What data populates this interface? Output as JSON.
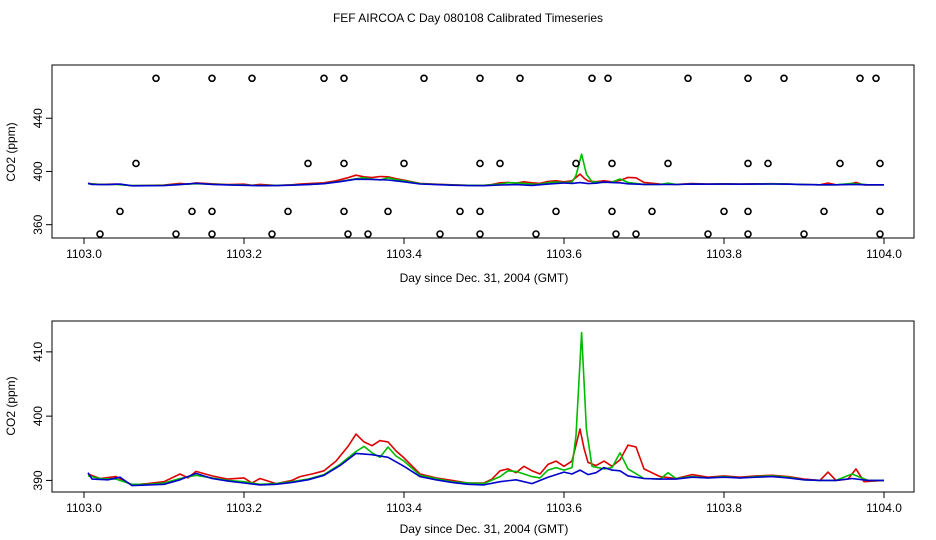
{
  "title": "FEF AIRCOA C  Day 080108  Calibrated Timeseries",
  "colors": {
    "red": "#dd0000",
    "green": "#00bb00",
    "blue": "#0000cc",
    "marker": "#000000"
  },
  "chart_data": [
    {
      "type": "line",
      "panel": "top",
      "xlabel": "Day since Dec. 31, 2004 (GMT)",
      "ylabel": "CO2 (ppm)",
      "xlim": [
        1103.0,
        1104.0
      ],
      "ylim": [
        350,
        480
      ],
      "xticks": [
        1103.0,
        1103.2,
        1103.4,
        1103.6,
        1103.8,
        1104.0
      ],
      "xtick_labels": [
        "1103.0",
        "1103.2",
        "1103.4",
        "1103.6",
        "1103.8",
        "1104.0"
      ],
      "yticks": [
        360,
        400,
        440
      ],
      "ytick_labels": [
        "360",
        "400",
        "440"
      ],
      "series_ref": "shared",
      "markers": {
        "description": "calibration / flag points",
        "levels": [
          {
            "y": 470,
            "x": [
              1103.09,
              1103.16,
              1103.21,
              1103.3,
              1103.325,
              1103.425,
              1103.495,
              1103.545,
              1103.635,
              1103.655,
              1103.755,
              1103.83,
              1103.875,
              1103.97,
              1103.99
            ]
          },
          {
            "y": 406,
            "x": [
              1103.065,
              1103.28,
              1103.325,
              1103.4,
              1103.495,
              1103.52,
              1103.615,
              1103.66,
              1103.73,
              1103.83,
              1103.855,
              1103.945,
              1103.995
            ]
          },
          {
            "y": 370,
            "x": [
              1103.045,
              1103.135,
              1103.16,
              1103.255,
              1103.325,
              1103.38,
              1103.47,
              1103.495,
              1103.59,
              1103.66,
              1103.71,
              1103.8,
              1103.83,
              1103.925,
              1103.995
            ]
          },
          {
            "y": 353,
            "x": [
              1103.02,
              1103.115,
              1103.16,
              1103.235,
              1103.33,
              1103.355,
              1103.445,
              1103.495,
              1103.565,
              1103.665,
              1103.69,
              1103.78,
              1103.83,
              1103.9,
              1103.995
            ]
          }
        ]
      }
    },
    {
      "type": "line",
      "panel": "bottom",
      "xlabel": "Day since Dec. 31, 2004 (GMT)",
      "ylabel": "CO2 (ppm)",
      "xlim": [
        1103.0,
        1104.0
      ],
      "ylim": [
        388.2,
        414.8
      ],
      "xticks": [
        1103.0,
        1103.2,
        1103.4,
        1103.6,
        1103.8,
        1104.0
      ],
      "xtick_labels": [
        "1103.0",
        "1103.2",
        "1103.4",
        "1103.6",
        "1103.8",
        "1104.0"
      ],
      "yticks": [
        390,
        400,
        410
      ],
      "ytick_labels": [
        "390",
        "400",
        "410"
      ],
      "series_ref": "shared"
    }
  ],
  "series": [
    {
      "name": "red",
      "color": "#dd0000",
      "points": [
        [
          1103.005,
          391.0
        ],
        [
          1103.02,
          390.3
        ],
        [
          1103.04,
          390.6
        ],
        [
          1103.06,
          389.3
        ],
        [
          1103.08,
          389.5
        ],
        [
          1103.1,
          389.8
        ],
        [
          1103.12,
          391.0
        ],
        [
          1103.13,
          390.4
        ],
        [
          1103.14,
          391.4
        ],
        [
          1103.16,
          390.7
        ],
        [
          1103.18,
          390.2
        ],
        [
          1103.2,
          390.4
        ],
        [
          1103.21,
          389.6
        ],
        [
          1103.22,
          390.3
        ],
        [
          1103.24,
          389.5
        ],
        [
          1103.26,
          390.0
        ],
        [
          1103.27,
          390.6
        ],
        [
          1103.285,
          391.0
        ],
        [
          1103.3,
          391.5
        ],
        [
          1103.315,
          393.0
        ],
        [
          1103.33,
          395.3
        ],
        [
          1103.34,
          397.2
        ],
        [
          1103.35,
          396.0
        ],
        [
          1103.36,
          395.4
        ],
        [
          1103.37,
          396.2
        ],
        [
          1103.38,
          396.0
        ],
        [
          1103.39,
          394.6
        ],
        [
          1103.4,
          393.5
        ],
        [
          1103.42,
          391.0
        ],
        [
          1103.44,
          390.4
        ],
        [
          1103.46,
          390.0
        ],
        [
          1103.48,
          389.6
        ],
        [
          1103.5,
          389.6
        ],
        [
          1103.51,
          390.2
        ],
        [
          1103.52,
          391.5
        ],
        [
          1103.53,
          391.8
        ],
        [
          1103.54,
          391.2
        ],
        [
          1103.55,
          392.2
        ],
        [
          1103.56,
          391.5
        ],
        [
          1103.57,
          391.0
        ],
        [
          1103.58,
          392.5
        ],
        [
          1103.59,
          393.0
        ],
        [
          1103.6,
          392.2
        ],
        [
          1103.61,
          393.0
        ],
        [
          1103.62,
          398.0
        ],
        [
          1103.625,
          395.0
        ],
        [
          1103.63,
          392.8
        ],
        [
          1103.64,
          392.3
        ],
        [
          1103.65,
          393.0
        ],
        [
          1103.66,
          392.2
        ],
        [
          1103.67,
          393.2
        ],
        [
          1103.68,
          395.5
        ],
        [
          1103.69,
          395.2
        ],
        [
          1103.7,
          391.8
        ],
        [
          1103.72,
          390.6
        ],
        [
          1103.74,
          390.3
        ],
        [
          1103.76,
          390.9
        ],
        [
          1103.78,
          390.5
        ],
        [
          1103.8,
          390.7
        ],
        [
          1103.82,
          390.5
        ],
        [
          1103.84,
          390.7
        ],
        [
          1103.86,
          390.8
        ],
        [
          1103.88,
          390.6
        ],
        [
          1103.9,
          390.2
        ],
        [
          1103.92,
          390.0
        ],
        [
          1103.93,
          391.3
        ],
        [
          1103.94,
          390.0
        ],
        [
          1103.955,
          390.2
        ],
        [
          1103.965,
          391.8
        ],
        [
          1103.975,
          389.8
        ],
        [
          1104.0,
          390.0
        ]
      ]
    },
    {
      "name": "green",
      "color": "#00bb00",
      "points": [
        [
          1103.005,
          390.7
        ],
        [
          1103.02,
          390.3
        ],
        [
          1103.04,
          390.2
        ],
        [
          1103.06,
          389.4
        ],
        [
          1103.08,
          389.4
        ],
        [
          1103.1,
          389.6
        ],
        [
          1103.12,
          390.3
        ],
        [
          1103.14,
          390.8
        ],
        [
          1103.16,
          390.4
        ],
        [
          1103.18,
          390.0
        ],
        [
          1103.2,
          389.8
        ],
        [
          1103.22,
          389.4
        ],
        [
          1103.24,
          389.5
        ],
        [
          1103.26,
          389.8
        ],
        [
          1103.28,
          390.2
        ],
        [
          1103.3,
          390.9
        ],
        [
          1103.32,
          392.5
        ],
        [
          1103.34,
          394.5
        ],
        [
          1103.35,
          395.3
        ],
        [
          1103.36,
          394.3
        ],
        [
          1103.37,
          393.6
        ],
        [
          1103.38,
          395.2
        ],
        [
          1103.39,
          393.8
        ],
        [
          1103.4,
          393.0
        ],
        [
          1103.42,
          390.8
        ],
        [
          1103.44,
          390.3
        ],
        [
          1103.46,
          389.8
        ],
        [
          1103.48,
          389.6
        ],
        [
          1103.5,
          389.5
        ],
        [
          1103.52,
          390.6
        ],
        [
          1103.53,
          391.5
        ],
        [
          1103.54,
          391.4
        ],
        [
          1103.55,
          391.0
        ],
        [
          1103.56,
          390.6
        ],
        [
          1103.57,
          390.4
        ],
        [
          1103.58,
          391.6
        ],
        [
          1103.59,
          392.0
        ],
        [
          1103.6,
          391.6
        ],
        [
          1103.61,
          392.0
        ],
        [
          1103.615,
          397.0
        ],
        [
          1103.622,
          413.0
        ],
        [
          1103.628,
          398.0
        ],
        [
          1103.635,
          392.2
        ],
        [
          1103.65,
          391.8
        ],
        [
          1103.66,
          392.0
        ],
        [
          1103.67,
          394.3
        ],
        [
          1103.68,
          391.8
        ],
        [
          1103.7,
          390.3
        ],
        [
          1103.72,
          390.2
        ],
        [
          1103.73,
          391.2
        ],
        [
          1103.74,
          390.3
        ],
        [
          1103.76,
          390.6
        ],
        [
          1103.78,
          390.4
        ],
        [
          1103.8,
          390.6
        ],
        [
          1103.82,
          390.4
        ],
        [
          1103.84,
          390.6
        ],
        [
          1103.86,
          390.7
        ],
        [
          1103.88,
          390.5
        ],
        [
          1103.9,
          390.1
        ],
        [
          1103.92,
          390.0
        ],
        [
          1103.94,
          390.0
        ],
        [
          1103.96,
          391.0
        ],
        [
          1103.98,
          390.0
        ],
        [
          1104.0,
          390.0
        ]
      ]
    },
    {
      "name": "blue",
      "color": "#0000cc",
      "points": [
        [
          1103.005,
          391.2
        ],
        [
          1103.01,
          390.2
        ],
        [
          1103.03,
          390.1
        ],
        [
          1103.045,
          390.5
        ],
        [
          1103.06,
          389.2
        ],
        [
          1103.08,
          389.3
        ],
        [
          1103.1,
          389.4
        ],
        [
          1103.12,
          390.1
        ],
        [
          1103.14,
          391.1
        ],
        [
          1103.16,
          390.3
        ],
        [
          1103.18,
          389.9
        ],
        [
          1103.2,
          389.6
        ],
        [
          1103.22,
          389.3
        ],
        [
          1103.24,
          389.4
        ],
        [
          1103.26,
          389.7
        ],
        [
          1103.28,
          390.1
        ],
        [
          1103.3,
          390.8
        ],
        [
          1103.32,
          392.3
        ],
        [
          1103.34,
          394.2
        ],
        [
          1103.36,
          394.0
        ],
        [
          1103.38,
          393.6
        ],
        [
          1103.4,
          392.2
        ],
        [
          1103.42,
          390.6
        ],
        [
          1103.44,
          390.1
        ],
        [
          1103.46,
          389.7
        ],
        [
          1103.48,
          389.4
        ],
        [
          1103.5,
          389.3
        ],
        [
          1103.52,
          389.8
        ],
        [
          1103.54,
          390.1
        ],
        [
          1103.56,
          389.5
        ],
        [
          1103.58,
          390.5
        ],
        [
          1103.6,
          391.3
        ],
        [
          1103.61,
          391.0
        ],
        [
          1103.62,
          391.6
        ],
        [
          1103.63,
          390.9
        ],
        [
          1103.64,
          391.2
        ],
        [
          1103.65,
          392.0
        ],
        [
          1103.66,
          391.6
        ],
        [
          1103.67,
          391.5
        ],
        [
          1103.68,
          390.7
        ],
        [
          1103.7,
          390.3
        ],
        [
          1103.72,
          390.2
        ],
        [
          1103.74,
          390.2
        ],
        [
          1103.76,
          390.5
        ],
        [
          1103.78,
          390.4
        ],
        [
          1103.8,
          390.5
        ],
        [
          1103.82,
          390.4
        ],
        [
          1103.84,
          390.5
        ],
        [
          1103.86,
          390.6
        ],
        [
          1103.88,
          390.4
        ],
        [
          1103.9,
          390.1
        ],
        [
          1103.92,
          390.0
        ],
        [
          1103.94,
          390.0
        ],
        [
          1103.96,
          390.3
        ],
        [
          1103.98,
          390.0
        ],
        [
          1104.0,
          390.0
        ]
      ]
    }
  ]
}
